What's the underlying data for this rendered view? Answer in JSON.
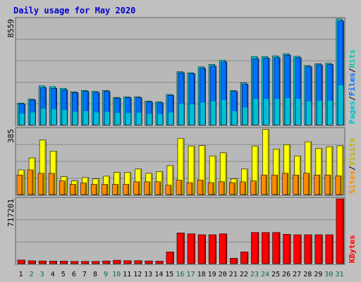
{
  "chart_data": {
    "type": "bar",
    "title": "Daily usage for May 2020",
    "categories": [
      "1",
      "2",
      "3",
      "4",
      "5",
      "6",
      "7",
      "8",
      "9",
      "10",
      "11",
      "12",
      "13",
      "14",
      "15",
      "16",
      "17",
      "18",
      "19",
      "20",
      "21",
      "22",
      "23",
      "24",
      "25",
      "26",
      "27",
      "28",
      "29",
      "30",
      "31"
    ],
    "weekend_days": [
      "2",
      "3",
      "9",
      "10",
      "16",
      "17",
      "23",
      "24",
      "30",
      "31"
    ],
    "colors": {
      "background": "#c0c0c0",
      "panel": "#b8b8b8",
      "grid": "#888888",
      "title": "#0000cc",
      "hits": "#00d8e8",
      "files": "#0070ff",
      "pages": "#00c0d0",
      "visits": "#ffff00",
      "sites": "#ff8c00",
      "kbytes": "#ff0000",
      "weekday_label": "#000000",
      "weekend_label": "#007040",
      "visits_label": "#c8b000"
    },
    "panels": [
      {
        "name": "requests",
        "max_label": "8559",
        "ylim": [
          0,
          8559
        ],
        "legend": [
          {
            "text": "Pages",
            "color": "#00c0d0"
          },
          {
            "text": "/",
            "color": "#000000"
          },
          {
            "text": "Files",
            "color": "#0070ff"
          },
          {
            "text": "/",
            "color": "#000000"
          },
          {
            "text": "Hits",
            "color": "#00c8a0"
          }
        ],
        "series": [
          {
            "name": "Hits",
            "values": [
              1756,
              2070,
              3144,
              3080,
              2954,
              2671,
              2779,
              2698,
              2779,
              2219,
              2252,
              2260,
              1926,
              1845,
              2457,
              4294,
              4213,
              4687,
              4883,
              5215,
              2764,
              3391,
              5513,
              5513,
              5578,
              5749,
              5538,
              4796,
              4941,
              4973,
              8559
            ]
          },
          {
            "name": "Files",
            "values": [
              1691,
              2006,
              3015,
              2951,
              2824,
              2606,
              2698,
              2617,
              2698,
              2155,
              2187,
              2187,
              1845,
              1780,
              2376,
              4213,
              4132,
              4570,
              4751,
              5085,
              2698,
              3274,
              5358,
              5391,
              5434,
              5634,
              5424,
              4704,
              4850,
              4882,
              8400
            ]
          },
          {
            "name": "Pages",
            "values": [
              900,
              1000,
              1300,
              1250,
              1200,
              1050,
              1100,
              1000,
              1050,
              950,
              960,
              980,
              880,
              860,
              1000,
              1700,
              1650,
              1800,
              1900,
              2000,
              1100,
              1400,
              2100,
              2100,
              2100,
              2150,
              2100,
              1900,
              1950,
              1950,
              3200
            ]
          }
        ]
      },
      {
        "name": "visitors",
        "max_label": "385",
        "ylim": [
          0,
          385
        ],
        "legend": [
          {
            "text": "Sites",
            "color": "#ff8c00"
          },
          {
            "text": "/",
            "color": "#000000"
          },
          {
            "text": "Visits",
            "color": "#c8b000"
          }
        ],
        "series": [
          {
            "name": "Visits",
            "values": [
              145,
              215,
              320,
              255,
              105,
              80,
              100,
              92,
              108,
              130,
              130,
              150,
              125,
              135,
              170,
              330,
              285,
              287,
              227,
              245,
              92,
              150,
              285,
              383,
              267,
              293,
              227,
              310,
              271,
              281,
              286
            ]
          },
          {
            "name": "Sites",
            "values": [
              115,
              145,
              125,
              125,
              80,
              60,
              68,
              60,
              60,
              60,
              60,
              75,
              75,
              75,
              55,
              85,
              70,
              85,
              70,
              75,
              70,
              75,
              80,
              115,
              115,
              125,
              115,
              125,
              115,
              115,
              110
            ]
          }
        ]
      },
      {
        "name": "volume",
        "max_label": "717201",
        "ylim": [
          0,
          717201
        ],
        "legend": [
          {
            "text": "KBytes",
            "color": "#ff0000"
          }
        ],
        "series": [
          {
            "name": "KBytes",
            "values": [
              40000,
              32000,
              30000,
              28000,
              28000,
              25000,
              25000,
              25000,
              30000,
              38000,
              33000,
              33000,
              30000,
              28000,
              130000,
              340000,
              330000,
              320000,
              320000,
              330000,
              60000,
              130000,
              345000,
              345000,
              345000,
              325000,
              320000,
              320000,
              320000,
              320000,
              717201
            ]
          }
        ]
      }
    ]
  }
}
